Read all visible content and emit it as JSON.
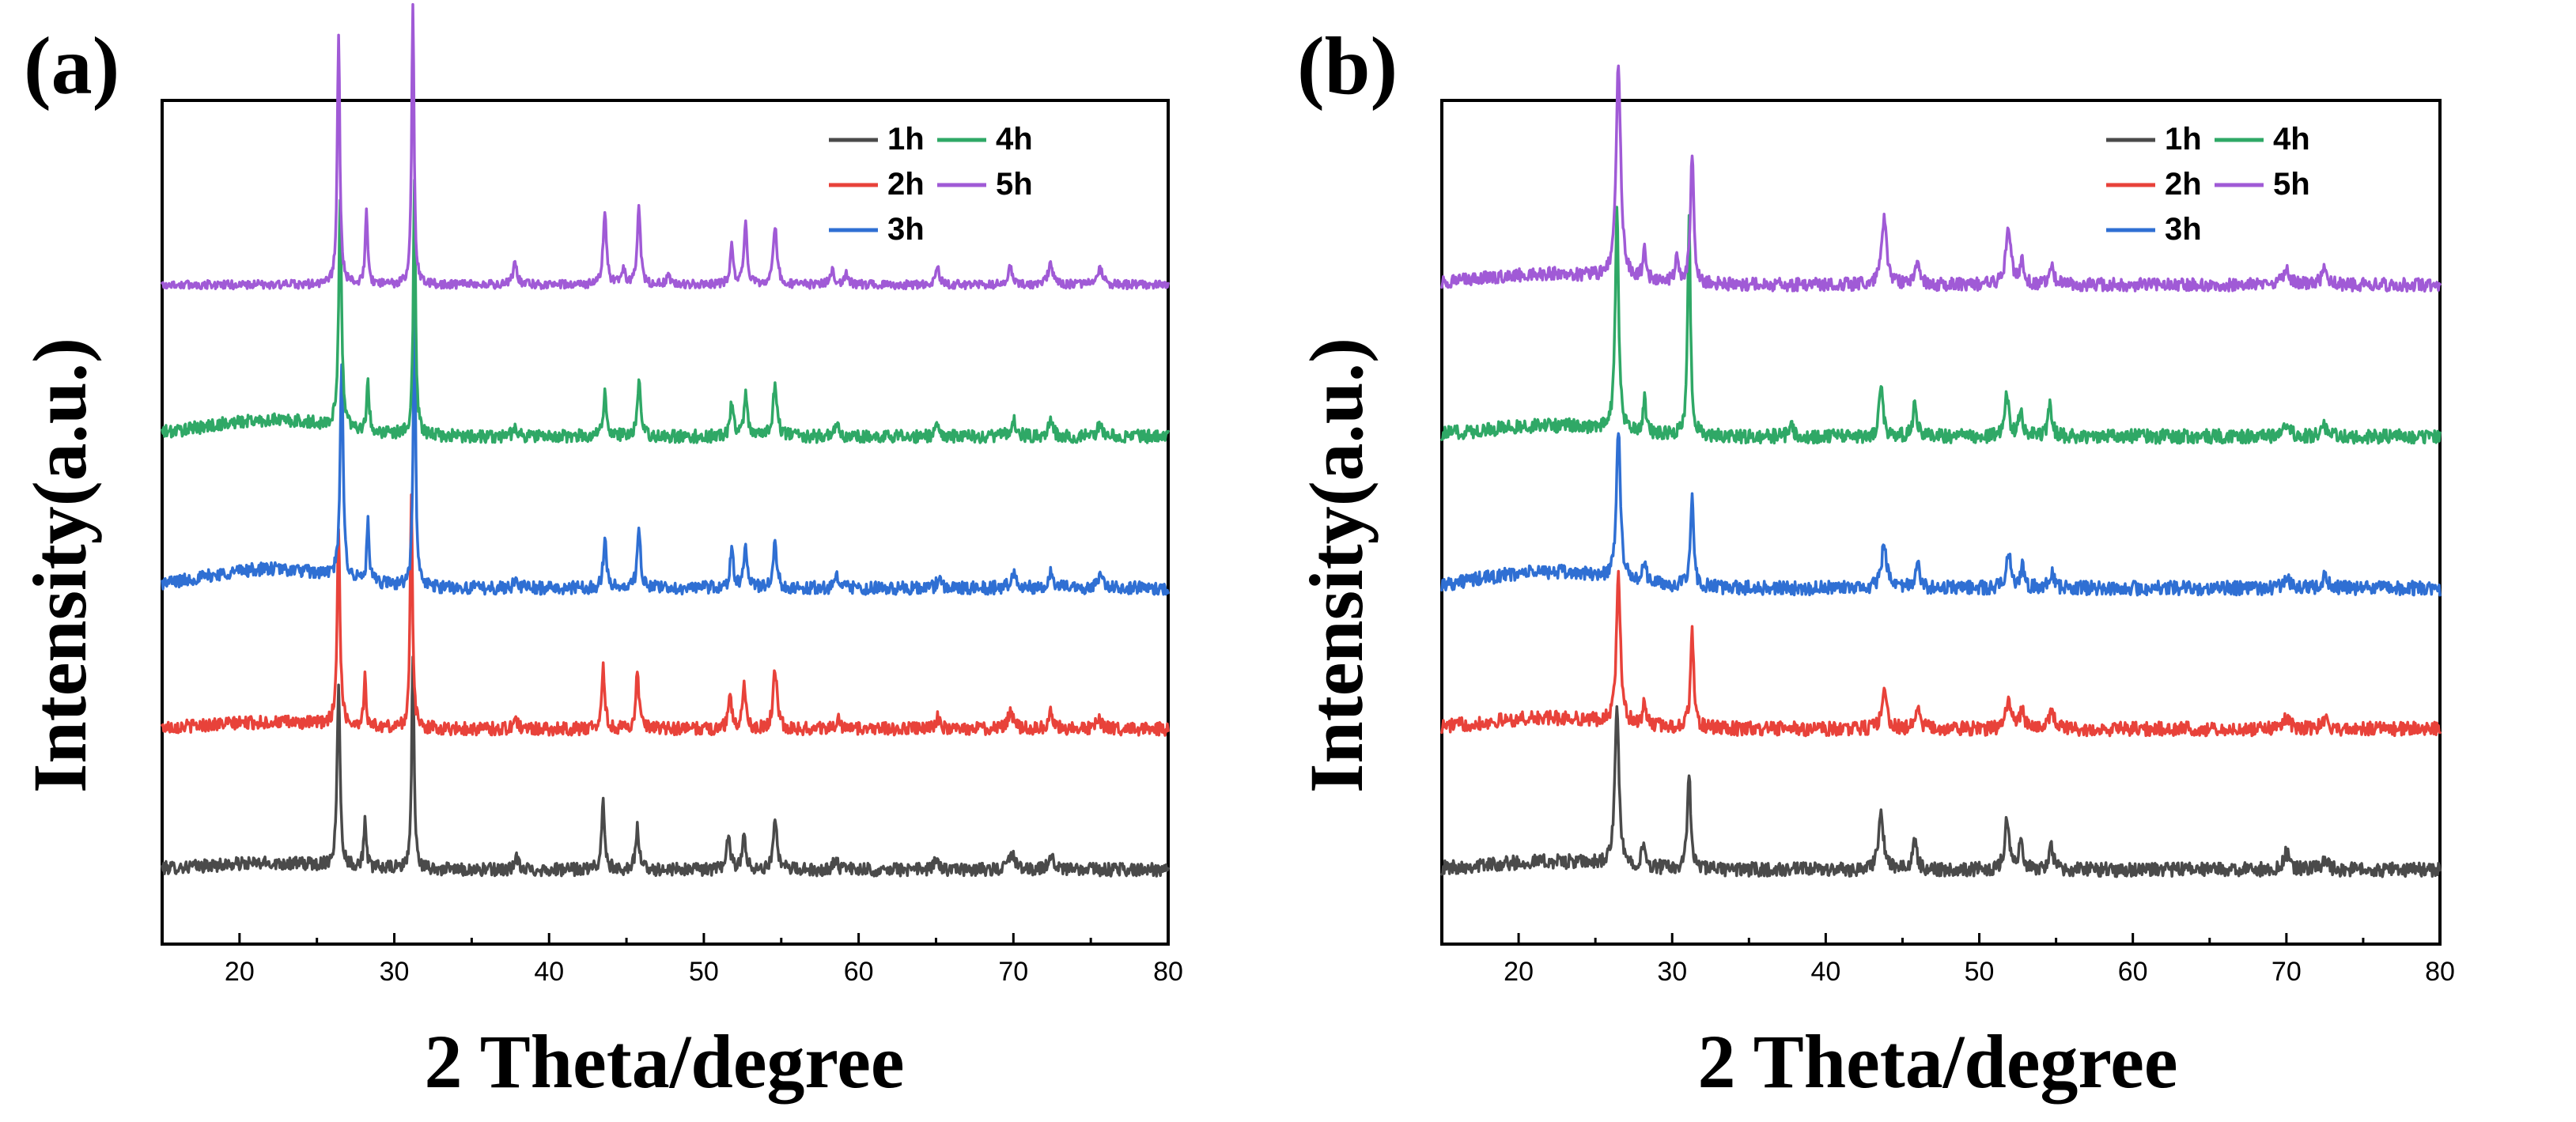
{
  "chart_data": [
    {
      "type": "line",
      "panel_label": "(a)",
      "xlabel": "2 Theta/degree",
      "ylabel": "Intensity(a.u.)",
      "xlim": [
        15,
        80
      ],
      "xticks": [
        "20",
        "30",
        "40",
        "50",
        "60",
        "70",
        "80"
      ],
      "legend": [
        "1h",
        "2h",
        "3h",
        "4h",
        "5h"
      ],
      "legend_position": "top-right",
      "series": [
        {
          "name": "1h",
          "color": "#4a4a4a",
          "baseline": 0.0,
          "noise": 0.012,
          "hump": 0.012,
          "peaks": [
            [
              26.4,
              0.34,
              0.22
            ],
            [
              28.1,
              0.09,
              0.18
            ],
            [
              31.2,
              0.4,
              0.18
            ],
            [
              37.9,
              0.02,
              0.3
            ],
            [
              43.5,
              0.12,
              0.25
            ],
            [
              45.7,
              0.08,
              0.25
            ],
            [
              51.6,
              0.07,
              0.25
            ],
            [
              52.6,
              0.07,
              0.25
            ],
            [
              54.6,
              0.09,
              0.3
            ],
            [
              58.5,
              0.02,
              0.3
            ],
            [
              65.0,
              0.02,
              0.3
            ],
            [
              69.9,
              0.03,
              0.4
            ],
            [
              72.4,
              0.03,
              0.35
            ]
          ]
        },
        {
          "name": "2h",
          "color": "#e8423a",
          "baseline": 0.26,
          "noise": 0.012,
          "hump": 0.012,
          "peaks": [
            [
              26.4,
              0.36,
              0.22
            ],
            [
              28.1,
              0.09,
              0.18
            ],
            [
              31.1,
              0.44,
              0.18
            ],
            [
              37.8,
              0.02,
              0.3
            ],
            [
              43.5,
              0.11,
              0.25
            ],
            [
              45.7,
              0.1,
              0.25
            ],
            [
              51.7,
              0.06,
              0.25
            ],
            [
              52.6,
              0.09,
              0.25
            ],
            [
              54.6,
              0.11,
              0.3
            ],
            [
              58.7,
              0.02,
              0.3
            ],
            [
              65.1,
              0.02,
              0.3
            ],
            [
              69.8,
              0.03,
              0.4
            ],
            [
              72.4,
              0.03,
              0.35
            ],
            [
              75.5,
              0.02,
              0.4
            ]
          ]
        },
        {
          "name": "3h",
          "color": "#2f6fd3",
          "baseline": 0.52,
          "noise": 0.012,
          "hump": 0.035,
          "peaks": [
            [
              26.6,
              0.4,
              0.22
            ],
            [
              28.3,
              0.11,
              0.18
            ],
            [
              31.3,
              0.52,
              0.18
            ],
            [
              37.9,
              0.02,
              0.3
            ],
            [
              43.6,
              0.09,
              0.25
            ],
            [
              45.8,
              0.11,
              0.25
            ],
            [
              51.8,
              0.07,
              0.25
            ],
            [
              52.7,
              0.08,
              0.25
            ],
            [
              54.6,
              0.08,
              0.3
            ],
            [
              58.6,
              0.02,
              0.3
            ],
            [
              65.2,
              0.02,
              0.3
            ],
            [
              70.0,
              0.03,
              0.4
            ],
            [
              72.4,
              0.03,
              0.35
            ],
            [
              75.6,
              0.02,
              0.4
            ]
          ]
        },
        {
          "name": "4h",
          "color": "#2fa866",
          "baseline": 0.8,
          "noise": 0.012,
          "hump": 0.03,
          "peaks": [
            [
              26.5,
              0.42,
              0.22
            ],
            [
              28.3,
              0.09,
              0.18
            ],
            [
              31.3,
              0.46,
              0.18
            ],
            [
              37.8,
              0.02,
              0.3
            ],
            [
              43.6,
              0.08,
              0.25
            ],
            [
              45.8,
              0.1,
              0.25
            ],
            [
              51.8,
              0.06,
              0.25
            ],
            [
              52.7,
              0.08,
              0.25
            ],
            [
              54.6,
              0.1,
              0.3
            ],
            [
              58.6,
              0.02,
              0.3
            ],
            [
              65.1,
              0.02,
              0.3
            ],
            [
              70.0,
              0.03,
              0.4
            ],
            [
              72.4,
              0.03,
              0.35
            ],
            [
              75.6,
              0.02,
              0.4
            ]
          ]
        },
        {
          "name": "5h",
          "color": "#a05ad6",
          "baseline": 1.08,
          "noise": 0.008,
          "hump": 0.0,
          "peaks": [
            [
              26.4,
              0.46,
              0.2
            ],
            [
              28.2,
              0.14,
              0.18
            ],
            [
              31.2,
              0.52,
              0.18
            ],
            [
              37.8,
              0.04,
              0.3
            ],
            [
              43.6,
              0.14,
              0.25
            ],
            [
              44.8,
              0.03,
              0.25
            ],
            [
              45.8,
              0.14,
              0.25
            ],
            [
              47.7,
              0.02,
              0.25
            ],
            [
              51.8,
              0.07,
              0.25
            ],
            [
              52.7,
              0.11,
              0.25
            ],
            [
              54.6,
              0.11,
              0.3
            ],
            [
              58.3,
              0.03,
              0.3
            ],
            [
              59.2,
              0.02,
              0.3
            ],
            [
              65.1,
              0.03,
              0.3
            ],
            [
              69.8,
              0.03,
              0.4
            ],
            [
              72.4,
              0.04,
              0.35
            ],
            [
              75.6,
              0.03,
              0.4
            ]
          ]
        }
      ]
    },
    {
      "type": "line",
      "panel_label": "(b)",
      "xlabel": "2 Theta/degree",
      "ylabel": "Intensity(a.u.)",
      "xlim": [
        15,
        80
      ],
      "xticks": [
        "20",
        "30",
        "40",
        "50",
        "60",
        "70",
        "80"
      ],
      "legend": [
        "1h",
        "2h",
        "3h",
        "4h",
        "5h"
      ],
      "legend_position": "top-right",
      "series": [
        {
          "name": "1h",
          "color": "#4a4a4a",
          "baseline": 0.0,
          "noise": 0.013,
          "hump": 0.015,
          "peaks": [
            [
              26.4,
              0.3,
              0.3
            ],
            [
              28.1,
              0.04,
              0.25
            ],
            [
              31.1,
              0.18,
              0.25
            ],
            [
              43.6,
              0.1,
              0.4
            ],
            [
              45.8,
              0.05,
              0.35
            ],
            [
              51.8,
              0.09,
              0.35
            ],
            [
              52.7,
              0.05,
              0.3
            ],
            [
              54.7,
              0.04,
              0.35
            ],
            [
              70.0,
              0.03,
              0.5
            ],
            [
              72.5,
              0.02,
              0.45
            ]
          ]
        },
        {
          "name": "2h",
          "color": "#e8423a",
          "baseline": 0.26,
          "noise": 0.013,
          "hump": 0.02,
          "peaks": [
            [
              26.5,
              0.28,
              0.3
            ],
            [
              28.2,
              0.04,
              0.25
            ],
            [
              31.3,
              0.18,
              0.25
            ],
            [
              43.8,
              0.07,
              0.4
            ],
            [
              46.0,
              0.04,
              0.35
            ],
            [
              51.9,
              0.06,
              0.35
            ],
            [
              52.8,
              0.04,
              0.3
            ],
            [
              54.7,
              0.04,
              0.35
            ],
            [
              70.0,
              0.02,
              0.5
            ],
            [
              72.5,
              0.02,
              0.45
            ]
          ]
        },
        {
          "name": "3h",
          "color": "#2f6fd3",
          "baseline": 0.52,
          "noise": 0.013,
          "hump": 0.03,
          "peaks": [
            [
              26.5,
              0.28,
              0.3
            ],
            [
              28.2,
              0.04,
              0.25
            ],
            [
              31.3,
              0.16,
              0.25
            ],
            [
              43.8,
              0.08,
              0.4
            ],
            [
              46.0,
              0.04,
              0.35
            ],
            [
              51.9,
              0.07,
              0.35
            ],
            [
              52.8,
              0.04,
              0.3
            ],
            [
              54.7,
              0.03,
              0.35
            ],
            [
              70.0,
              0.02,
              0.5
            ],
            [
              72.5,
              0.02,
              0.45
            ]
          ]
        },
        {
          "name": "4h",
          "color": "#2fa866",
          "baseline": 0.8,
          "noise": 0.013,
          "hump": 0.02,
          "peaks": [
            [
              26.4,
              0.42,
              0.25
            ],
            [
              28.2,
              0.06,
              0.2
            ],
            [
              31.1,
              0.4,
              0.22
            ],
            [
              37.8,
              0.02,
              0.3
            ],
            [
              43.6,
              0.09,
              0.3
            ],
            [
              45.8,
              0.06,
              0.3
            ],
            [
              51.8,
              0.08,
              0.3
            ],
            [
              52.7,
              0.05,
              0.3
            ],
            [
              54.6,
              0.06,
              0.3
            ],
            [
              70.0,
              0.02,
              0.5
            ],
            [
              72.4,
              0.02,
              0.45
            ]
          ]
        },
        {
          "name": "5h",
          "color": "#a05ad6",
          "baseline": 1.08,
          "noise": 0.012,
          "hump": 0.02,
          "peaks": [
            [
              26.5,
              0.4,
              0.35
            ],
            [
              28.2,
              0.06,
              0.25
            ],
            [
              30.3,
              0.04,
              0.3
            ],
            [
              31.3,
              0.24,
              0.25
            ],
            [
              43.8,
              0.12,
              0.4
            ],
            [
              46.0,
              0.04,
              0.35
            ],
            [
              51.9,
              0.1,
              0.4
            ],
            [
              52.8,
              0.04,
              0.3
            ],
            [
              54.7,
              0.04,
              0.35
            ],
            [
              70.0,
              0.03,
              0.5
            ],
            [
              72.5,
              0.03,
              0.45
            ]
          ]
        }
      ]
    }
  ]
}
